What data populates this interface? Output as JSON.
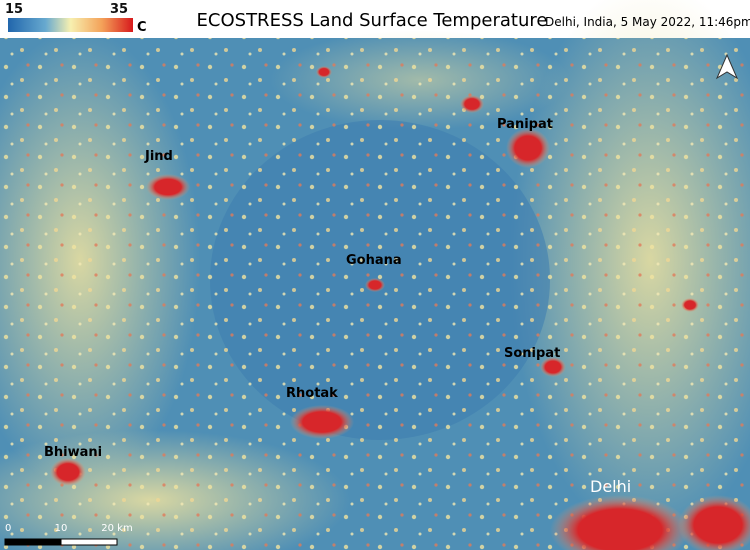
{
  "header": {
    "title": "ECOSTRESS Land Surface Temperature",
    "subtitle": "Delhi, India, 5 May 2022, 11:46pm"
  },
  "colorbar": {
    "ticks": [
      15,
      35
    ],
    "unit": "C"
  },
  "cities": [
    "Jind",
    "Panipat",
    "Gohana",
    "Sonipat",
    "Rhotak",
    "Bhiwani",
    "Delhi"
  ],
  "scalebar": {
    "ticks": [
      0,
      10,
      {
        "value": 20,
        "label": "20 km"
      }
    ]
  }
}
